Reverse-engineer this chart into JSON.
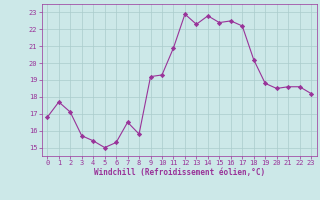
{
  "x": [
    0,
    1,
    2,
    3,
    4,
    5,
    6,
    7,
    8,
    9,
    10,
    11,
    12,
    13,
    14,
    15,
    16,
    17,
    18,
    19,
    20,
    21,
    22,
    23
  ],
  "y": [
    16.8,
    17.7,
    17.1,
    15.7,
    15.4,
    15.0,
    15.3,
    16.5,
    15.8,
    19.2,
    19.3,
    20.9,
    22.9,
    22.3,
    22.8,
    22.4,
    22.5,
    22.2,
    20.2,
    18.8,
    18.5,
    18.6,
    18.6,
    18.2
  ],
  "line_color": "#993399",
  "marker": "D",
  "marker_size": 2.2,
  "bg_color": "#cce8e8",
  "grid_color": "#aacccc",
  "xlabel": "Windchill (Refroidissement éolien,°C)",
  "xlabel_color": "#993399",
  "tick_color": "#993399",
  "ylim": [
    14.5,
    23.5
  ],
  "xlim": [
    -0.5,
    23.5
  ],
  "yticks": [
    15,
    16,
    17,
    18,
    19,
    20,
    21,
    22,
    23
  ],
  "xticks": [
    0,
    1,
    2,
    3,
    4,
    5,
    6,
    7,
    8,
    9,
    10,
    11,
    12,
    13,
    14,
    15,
    16,
    17,
    18,
    19,
    20,
    21,
    22,
    23
  ]
}
